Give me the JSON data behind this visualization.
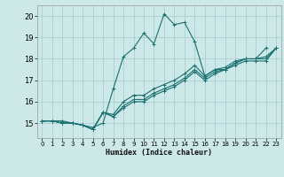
{
  "xlabel": "Humidex (Indice chaleur)",
  "bg_color": "#cde8e8",
  "grid_color": "#aacfcf",
  "line_color": "#1a7070",
  "xlim": [
    -0.5,
    23.5
  ],
  "ylim": [
    14.3,
    20.5
  ],
  "yticks": [
    15,
    16,
    17,
    18,
    19,
    20
  ],
  "xticks": [
    0,
    1,
    2,
    3,
    4,
    5,
    6,
    7,
    8,
    9,
    10,
    11,
    12,
    13,
    14,
    15,
    16,
    17,
    18,
    19,
    20,
    21,
    22,
    23
  ],
  "series": [
    [
      15.1,
      15.1,
      15.1,
      15.0,
      14.9,
      14.8,
      15.0,
      16.6,
      18.1,
      18.5,
      19.2,
      18.7,
      20.1,
      19.6,
      19.7,
      18.8,
      17.2,
      17.5,
      17.5,
      17.8,
      18.0,
      18.0,
      18.5,
      null
    ],
    [
      15.1,
      15.1,
      15.0,
      15.0,
      14.9,
      14.7,
      15.5,
      15.3,
      15.7,
      16.0,
      16.0,
      16.3,
      16.5,
      16.7,
      17.0,
      17.4,
      17.0,
      17.3,
      17.5,
      17.7,
      17.9,
      17.9,
      17.9,
      18.5
    ],
    [
      15.1,
      15.1,
      15.0,
      15.0,
      14.9,
      14.7,
      15.5,
      15.3,
      15.8,
      16.1,
      16.1,
      16.4,
      16.6,
      16.8,
      17.1,
      17.5,
      17.1,
      17.4,
      17.5,
      17.8,
      18.0,
      18.0,
      18.0,
      18.5
    ],
    [
      15.1,
      15.1,
      15.0,
      15.0,
      14.9,
      14.7,
      15.5,
      15.4,
      16.0,
      16.3,
      16.3,
      16.6,
      16.8,
      17.0,
      17.3,
      17.7,
      17.2,
      17.5,
      17.6,
      17.9,
      18.0,
      18.0,
      18.1,
      18.5
    ]
  ]
}
